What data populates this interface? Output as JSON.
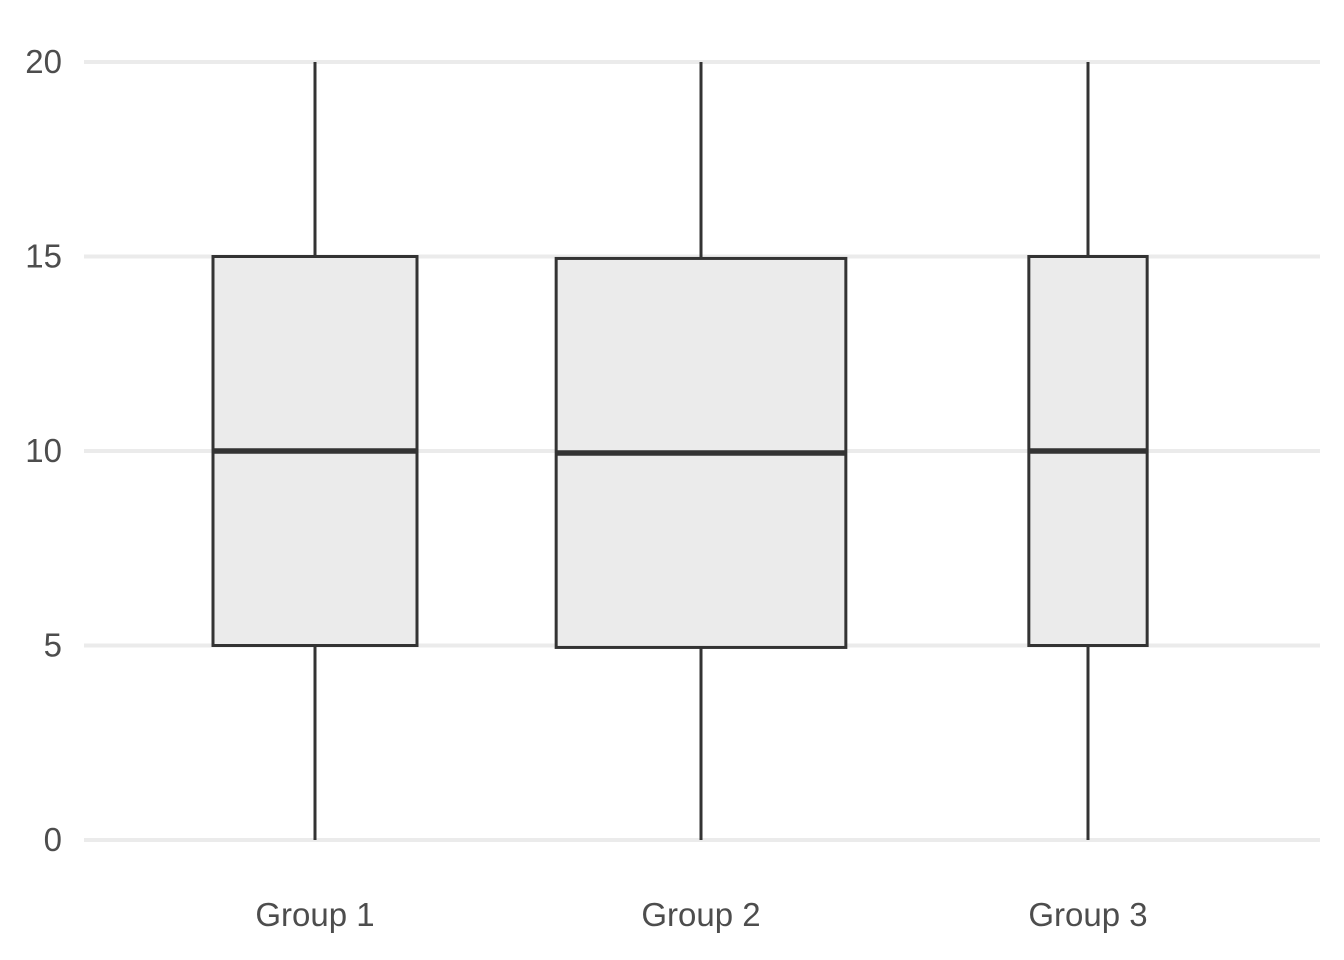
{
  "chart_data": {
    "type": "boxplot",
    "title": "",
    "xlabel": "",
    "ylabel": "",
    "categories": [
      "Group 1",
      "Group 2",
      "Group 3"
    ],
    "boxes": [
      {
        "category": "Group 1",
        "min": 0,
        "q1": 5.0,
        "median": 10.0,
        "q3": 15.0,
        "max": 20
      },
      {
        "category": "Group 2",
        "min": 0,
        "q1": 4.95,
        "median": 9.95,
        "q3": 14.95,
        "max": 20
      },
      {
        "category": "Group 3",
        "min": 0,
        "q1": 5.0,
        "median": 10.0,
        "q3": 15.0,
        "max": 20
      }
    ],
    "relative_widths": [
      1.0,
      1.42,
      0.58
    ],
    "ylim": [
      0,
      20
    ],
    "yticks": [
      0,
      5,
      10,
      15,
      20
    ],
    "grid": true,
    "colors": {
      "box_fill": "#ebebeb",
      "box_stroke": "#333333",
      "grid": "#ebebeb",
      "tick_text": "#4d4d4d"
    }
  }
}
